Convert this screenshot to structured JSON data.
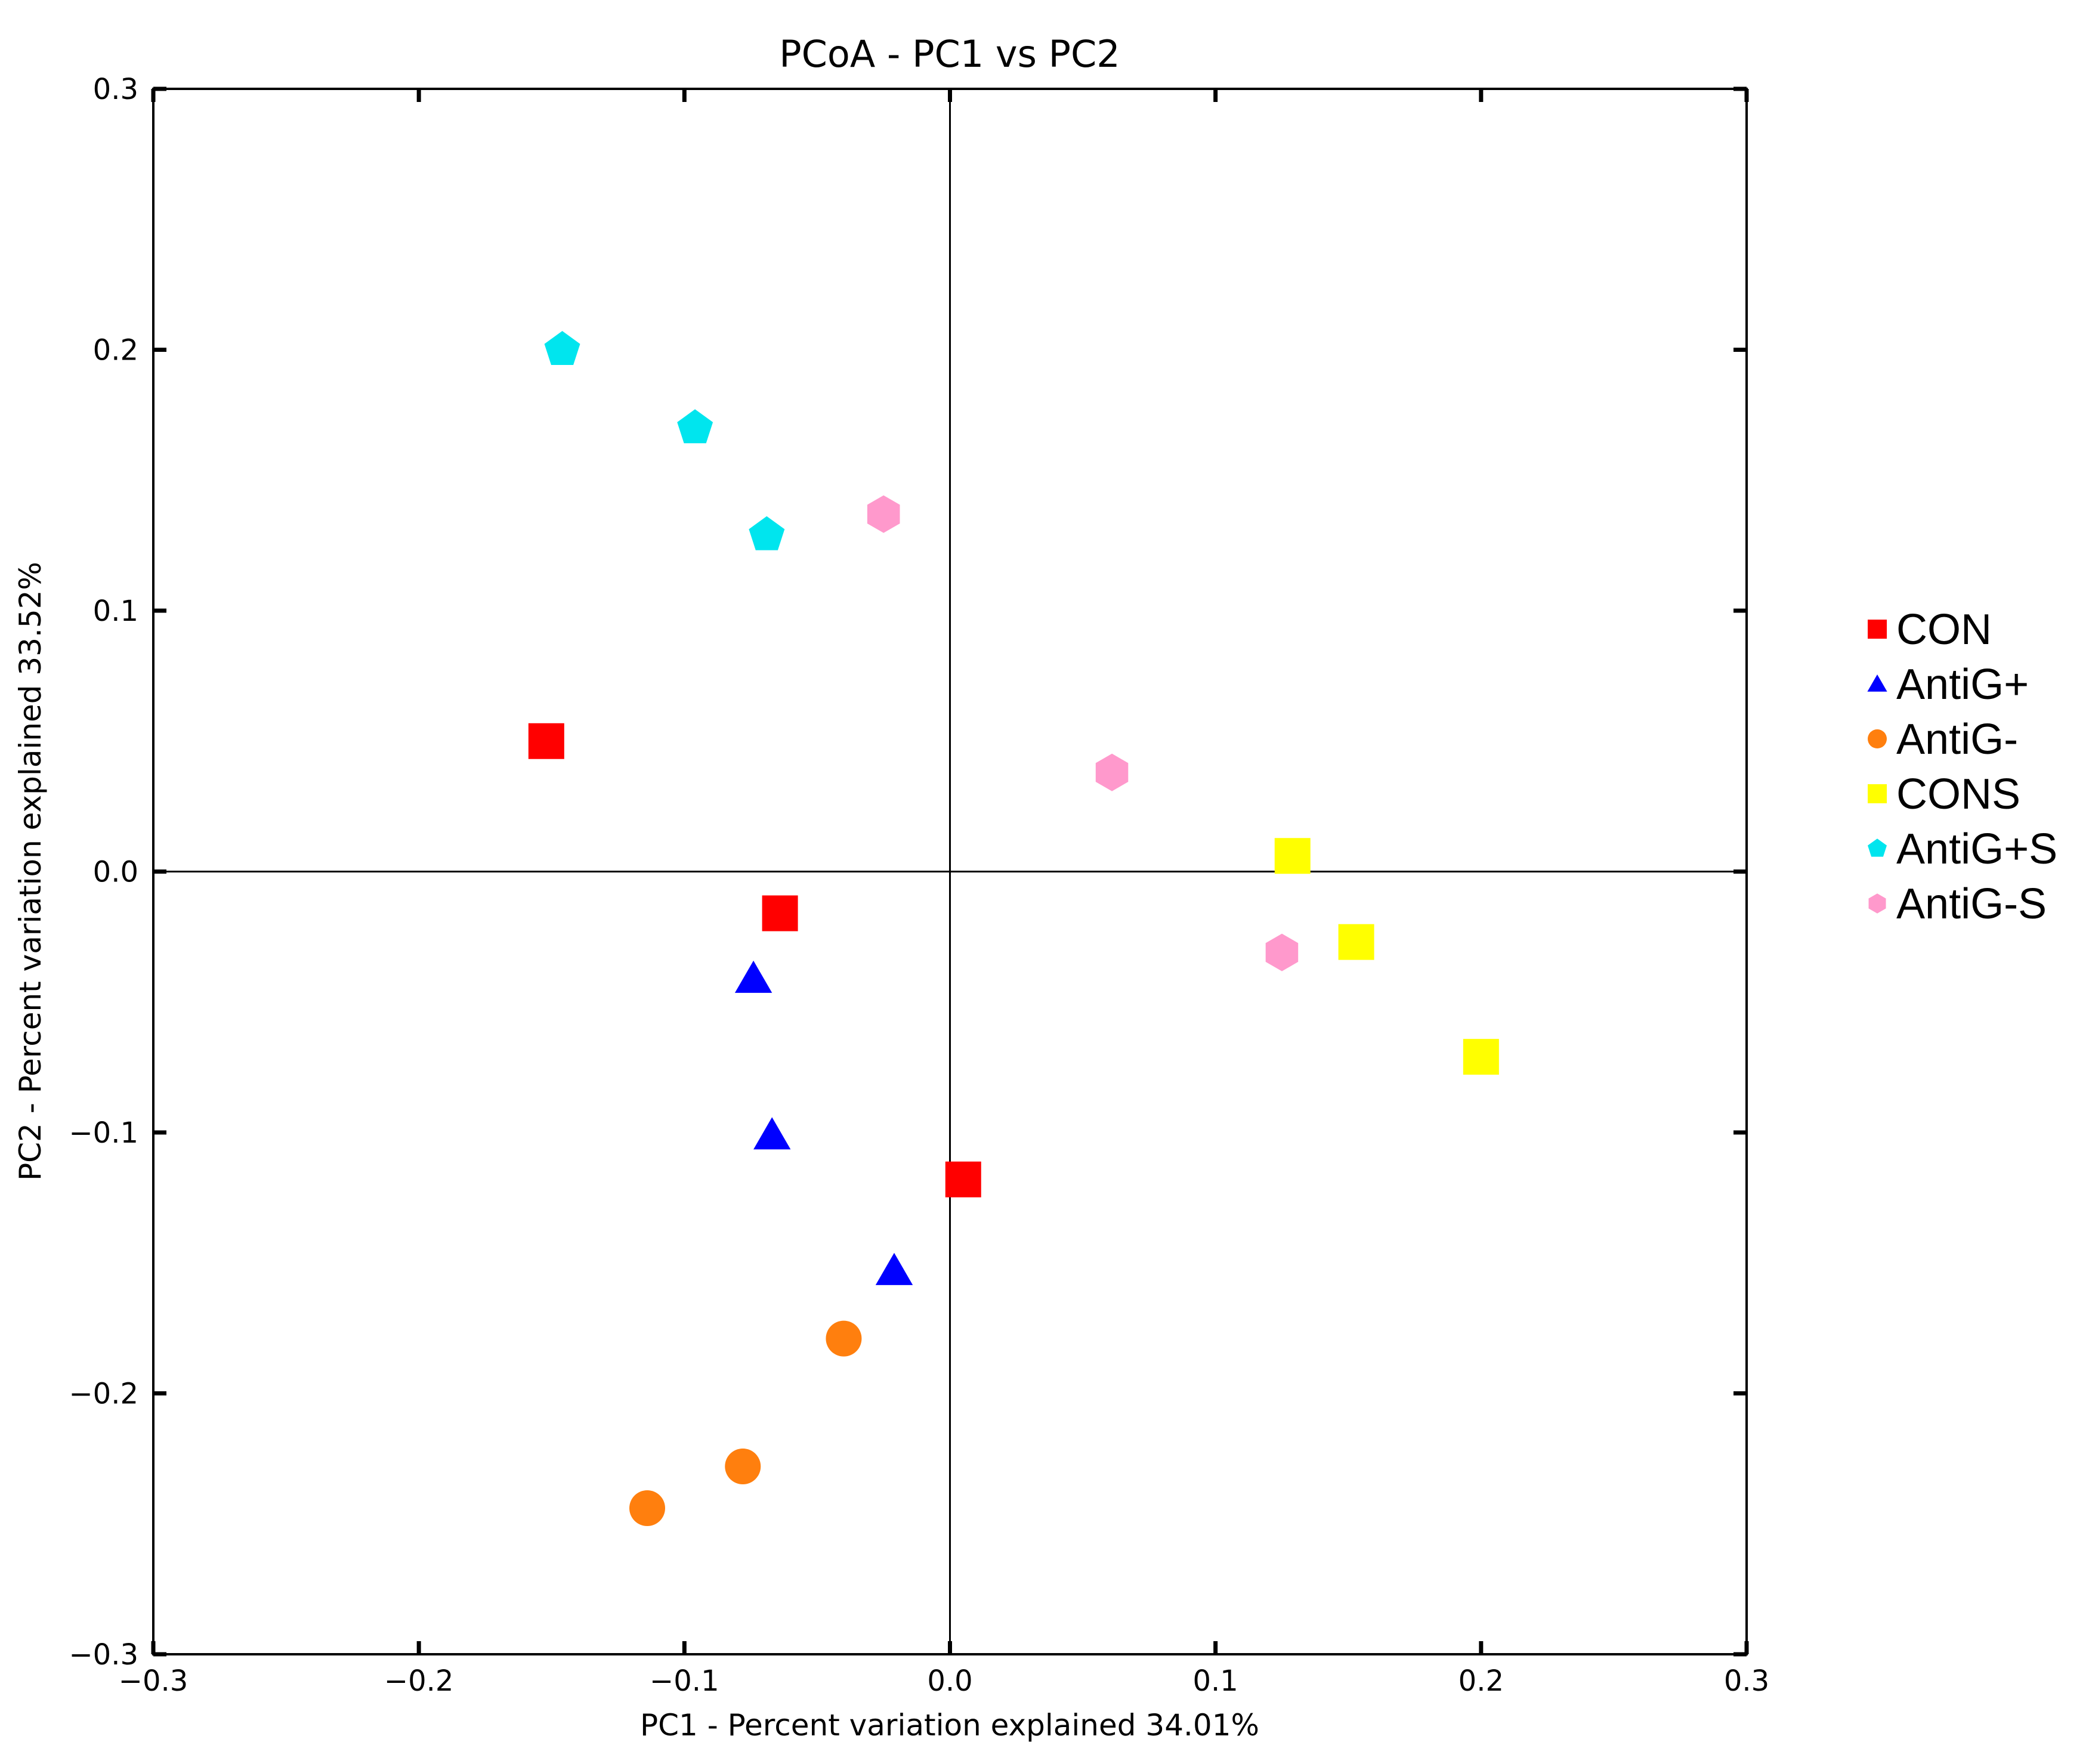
{
  "chart_data": {
    "type": "scatter",
    "title": "PCoA - PC1 vs PC2",
    "xlabel": "PC1 - Percent variation explained 34.01%",
    "ylabel": "PC2 - Percent variation explained 33.52%",
    "xlim": [
      -0.3,
      0.3
    ],
    "ylim": [
      -0.3,
      0.3
    ],
    "xticks": [
      -0.3,
      -0.2,
      -0.1,
      0.0,
      0.1,
      0.2,
      0.3
    ],
    "yticks": [
      -0.3,
      -0.2,
      -0.1,
      0.0,
      0.1,
      0.2,
      0.3
    ],
    "xtick_labels": [
      "−0.3",
      "−0.2",
      "−0.1",
      "0.0",
      "0.1",
      "0.2",
      "0.3"
    ],
    "ytick_labels": [
      "−0.3",
      "−0.2",
      "−0.1",
      "0.0",
      "0.1",
      "0.2",
      "0.3"
    ],
    "grid": false,
    "zero_lines": true,
    "legend_position": "right",
    "series": [
      {
        "name": "CON",
        "marker": "square",
        "color": "#ff0000",
        "points": [
          [
            -0.152,
            0.05
          ],
          [
            -0.064,
            -0.016
          ],
          [
            0.005,
            -0.118
          ]
        ]
      },
      {
        "name": "AntiG+",
        "marker": "triangle",
        "color": "#0000ff",
        "points": [
          [
            -0.074,
            -0.041
          ],
          [
            -0.067,
            -0.101
          ],
          [
            -0.021,
            -0.153
          ]
        ]
      },
      {
        "name": "AntiG-",
        "marker": "circle",
        "color": "#ff7f0e",
        "points": [
          [
            -0.04,
            -0.179
          ],
          [
            -0.078,
            -0.228
          ],
          [
            -0.114,
            -0.244
          ]
        ]
      },
      {
        "name": "CONS",
        "marker": "square",
        "color": "#ffff00",
        "points": [
          [
            0.129,
            0.006
          ],
          [
            0.153,
            -0.027
          ],
          [
            0.2,
            -0.071
          ]
        ]
      },
      {
        "name": "AntiG+S",
        "marker": "pentagon",
        "color": "#00e5ee",
        "points": [
          [
            -0.146,
            0.2
          ],
          [
            -0.096,
            0.17
          ],
          [
            -0.069,
            0.129
          ]
        ]
      },
      {
        "name": "AntiG-S",
        "marker": "hexagon",
        "color": "#ff99cc",
        "points": [
          [
            -0.025,
            0.137
          ],
          [
            0.061,
            0.038
          ],
          [
            0.125,
            -0.031
          ]
        ]
      }
    ]
  }
}
